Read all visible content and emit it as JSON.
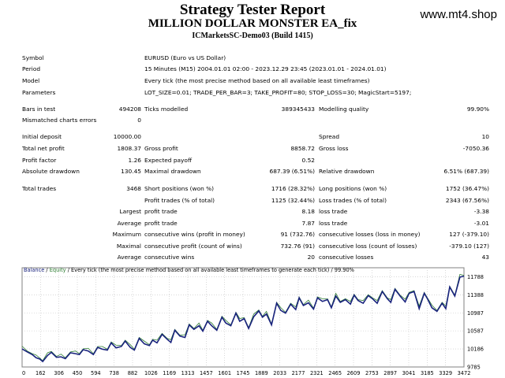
{
  "header": {
    "title": "Strategy Tester Report",
    "ea_name": "MILLION DOLLAR MONSTER EA_fix",
    "account": "ICMarketsSC-Demo03 (Build 1415)",
    "watermark": "www.mt4.shop"
  },
  "info": [
    {
      "label": "Symbol",
      "value": "EURUSD (Euro vs US Dollar)"
    },
    {
      "label": "Period",
      "value": "15 Minutes (M15) 2004.01.01 02:00 - 2023.12.29 23:45 (2023.01.01 - 2024.01.01)"
    },
    {
      "label": "Model",
      "value": "Every tick (the most precise method based on all available least timeframes)"
    },
    {
      "label": "Parameters",
      "value": "LOT_SIZE=0.01; TRADE_PER_BAR=3; TAKE_PROFIT=80; STOP_LOSS=30; MagicStart=5197;"
    }
  ],
  "stats": {
    "bars_label": "Bars in test",
    "bars_value": "494208",
    "ticks_label": "Ticks modelled",
    "ticks_value": "389345433",
    "quality_label": "Modelling quality",
    "quality_value": "99.90%",
    "mismatch_label": "Mismatched charts errors",
    "mismatch_value": "0",
    "initial_label": "Initial deposit",
    "initial_value": "10000.00",
    "spread_label": "Spread",
    "spread_value": "10",
    "netprofit_label": "Total net profit",
    "netprofit_value": "1808.37",
    "grossprofit_label": "Gross profit",
    "grossprofit_value": "8858.72",
    "grossloss_label": "Gross loss",
    "grossloss_value": "-7050.36",
    "pf_label": "Profit factor",
    "pf_value": "1.26",
    "payoff_label": "Expected payoff",
    "payoff_value": "0.52",
    "absdd_label": "Absolute drawdown",
    "absdd_value": "130.45",
    "maxdd_label": "Maximal drawdown",
    "maxdd_value": "687.39 (6.51%)",
    "reldd_label": "Relative drawdown",
    "reldd_value": "6.51% (687.39)",
    "trades_label": "Total trades",
    "trades_value": "3468",
    "short_label": "Short positions (won %)",
    "short_value": "1716 (28.32%)",
    "long_label": "Long positions (won %)",
    "long_value": "1752 (36.47%)",
    "profittrades_label": "Profit trades (% of total)",
    "profittrades_value": "1125 (32.44%)",
    "losstrades_label": "Loss trades (% of total)",
    "losstrades_value": "2343 (67.56%)",
    "largest_label": "Largest",
    "largest_profit_label": "profit trade",
    "largest_profit_value": "8.18",
    "largest_loss_label": "loss trade",
    "largest_loss_value": "-3.38",
    "average_label": "Average",
    "average_profit_label": "profit trade",
    "average_profit_value": "7.87",
    "average_loss_label": "loss trade",
    "average_loss_value": "-3.01",
    "maximum_label": "Maximum",
    "max_wins_label": "consecutive wins (profit in money)",
    "max_wins_value": "91 (732.76)",
    "max_losses_label": "consecutive losses (loss in money)",
    "max_losses_value": "127 (-379.10)",
    "maximal_label": "Maximal",
    "maximal_profit_label": "consecutive profit (count of wins)",
    "maximal_profit_value": "732.76 (91)",
    "maximal_loss_label": "consecutive loss (count of losses)",
    "maximal_loss_value": "-379.10 (127)",
    "avg_label": "Average",
    "avg_wins_label": "consecutive wins",
    "avg_wins_value": "20",
    "avg_losses_label": "consecutive losses",
    "avg_losses_value": "43"
  },
  "chart_legend": {
    "balance": "Balance",
    "sep": " / ",
    "equity": "Equity",
    "rest": " / Every tick (the most precise method based on all available least timeframes to generate each tick) / 99.90%"
  },
  "chart_data": {
    "type": "line",
    "colors": {
      "balance": "#1a237e",
      "equity": "#2e7d32",
      "grid": "#c0c0c0",
      "border": "#808080"
    },
    "x_ticks": [
      "0",
      "162",
      "306",
      "450",
      "594",
      "738",
      "882",
      "1026",
      "1169",
      "1313",
      "1457",
      "1601",
      "1745",
      "1889",
      "2033",
      "2177",
      "2321",
      "2465",
      "2609",
      "2753",
      "2897",
      "3041",
      "3185",
      "3329",
      "3472"
    ],
    "y_ticks": [
      "11788",
      "11388",
      "10987",
      "10587",
      "10186",
      "9785"
    ],
    "xlim": [
      0,
      3472
    ],
    "ylim": [
      9785,
      11988
    ],
    "series": [
      {
        "name": "Balance",
        "x": [
          0,
          40,
          80,
          110,
          140,
          162,
          200,
          230,
          270,
          306,
          340,
          380,
          420,
          450,
          480,
          520,
          560,
          594,
          630,
          670,
          700,
          738,
          780,
          810,
          850,
          882,
          920,
          960,
          1000,
          1026,
          1060,
          1100,
          1140,
          1169,
          1200,
          1240,
          1280,
          1313,
          1350,
          1390,
          1420,
          1457,
          1490,
          1530,
          1570,
          1601,
          1640,
          1680,
          1710,
          1745,
          1780,
          1820,
          1860,
          1889,
          1920,
          1960,
          2000,
          2033,
          2070,
          2110,
          2150,
          2177,
          2210,
          2250,
          2290,
          2321,
          2360,
          2400,
          2430,
          2465,
          2500,
          2540,
          2580,
          2609,
          2640,
          2680,
          2720,
          2753,
          2790,
          2830,
          2870,
          2897,
          2930,
          2970,
          3010,
          3041,
          3080,
          3120,
          3160,
          3185,
          3220,
          3260,
          3300,
          3329,
          3360,
          3400,
          3440,
          3472
        ],
        "y": [
          10186,
          10120,
          10060,
          9990,
          9960,
          9905,
          10040,
          10110,
          10000,
          10010,
          9970,
          10100,
          10080,
          10060,
          10170,
          10140,
          10060,
          10220,
          10180,
          10160,
          10320,
          10210,
          10240,
          10360,
          10220,
          10160,
          10420,
          10300,
          10260,
          10380,
          10320,
          10510,
          10400,
          10330,
          10600,
          10470,
          10440,
          10720,
          10620,
          10700,
          10580,
          10800,
          10700,
          10600,
          10890,
          10760,
          10700,
          10980,
          10800,
          10860,
          10640,
          10900,
          11030,
          10890,
          10960,
          10720,
          11200,
          11040,
          10980,
          11180,
          11060,
          11320,
          11150,
          11210,
          11070,
          11320,
          11240,
          11280,
          11100,
          11360,
          11220,
          11280,
          11180,
          11380,
          11260,
          11200,
          11370,
          11300,
          11200,
          11460,
          11300,
          11220,
          11510,
          11360,
          11230,
          11420,
          11460,
          11080,
          11420,
          11300,
          11100,
          11020,
          11200,
          11080,
          11560,
          11360,
          11780,
          11800
        ]
      }
    ]
  }
}
